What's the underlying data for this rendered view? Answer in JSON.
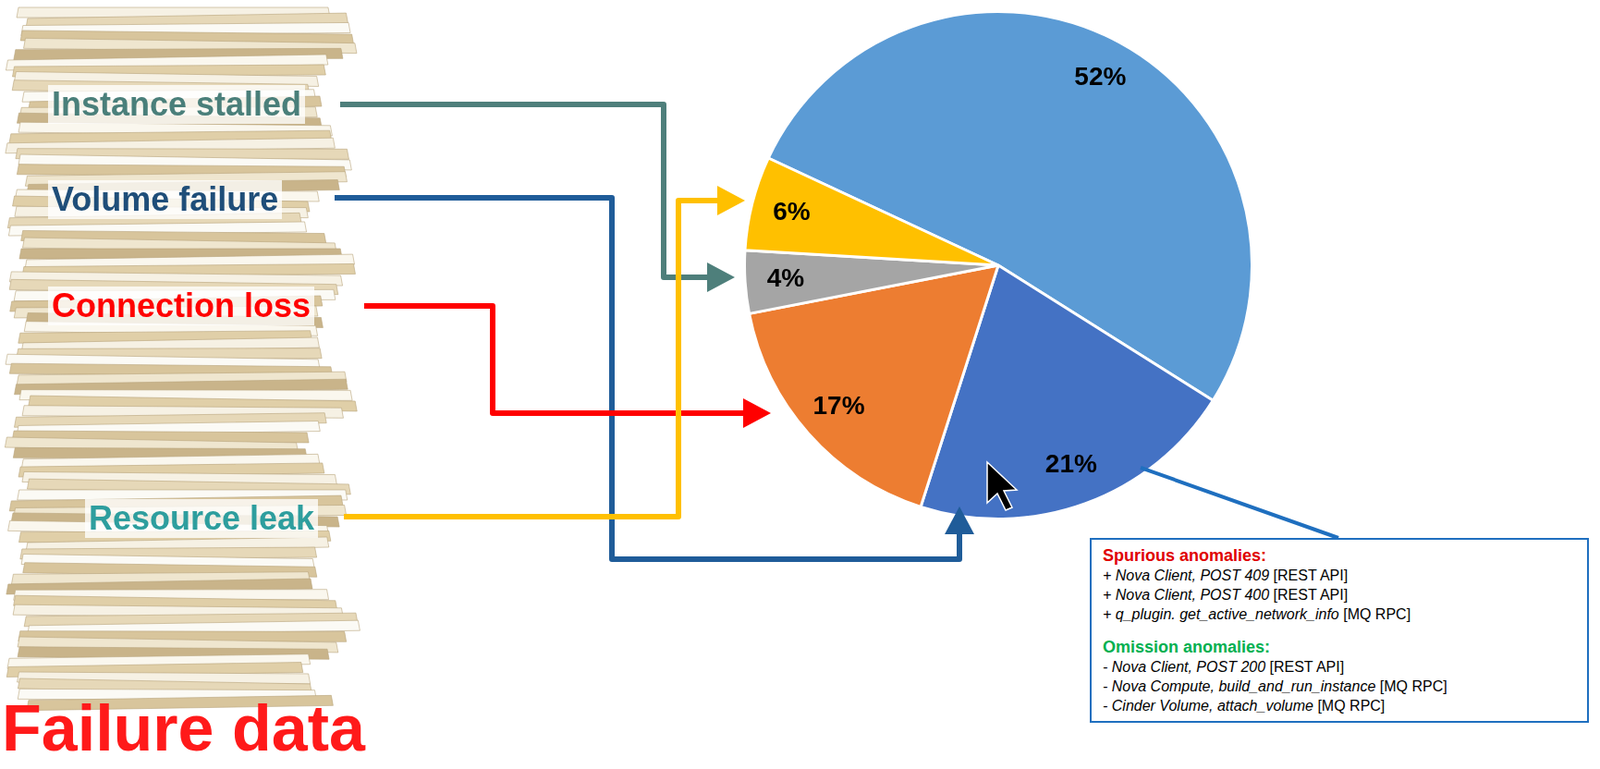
{
  "chart_data": {
    "type": "pie",
    "title": "Failure data",
    "categories": [
      null,
      "Volume failure",
      "Connection loss",
      "Instance stalled",
      "Resource leak"
    ],
    "values": [
      52,
      21,
      17,
      4,
      6
    ],
    "value_labels": [
      "52%",
      "21%",
      "17%",
      "4%",
      "6%"
    ],
    "colors": [
      "#5b9bd5",
      "#4472c4",
      "#ed7d31",
      "#a5a5a5",
      "#ffc000"
    ],
    "data_labels": true,
    "annotations": {
      "sections": [
        {
          "title": "Spurious anomalies:",
          "items": [
            "+ Nova Client, POST 409 [REST API]",
            "+ Nova Client, POST 400 [REST API]",
            "+ q_plugin. get_active_network_info [MQ RPC]"
          ]
        },
        {
          "title": "Omission anomalies:",
          "items": [
            "- Nova Client, POST 200 [REST API]",
            "- Nova Compute, build_and_run_instance [MQ RPC]",
            "- Cinder Volume, attach_volume [MQ RPC]"
          ]
        }
      ]
    }
  }
}
